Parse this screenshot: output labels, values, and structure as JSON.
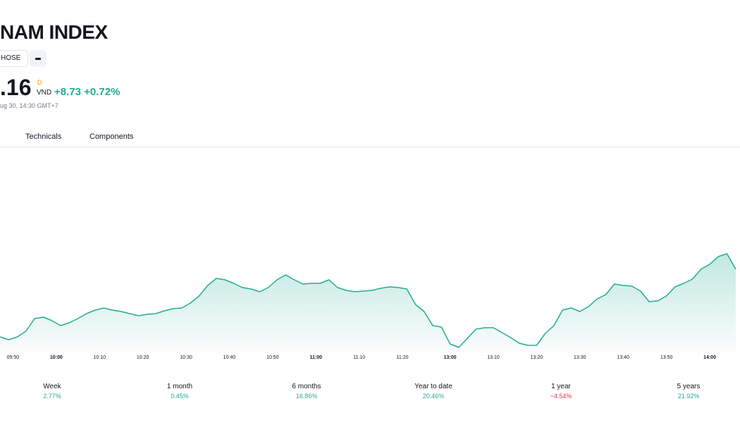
{
  "header": {
    "title": "NAM INDEX",
    "exchange": "HOSE",
    "price": ".16",
    "price_flag": "D",
    "currency": "VND",
    "change": "+8.73",
    "change_percent": "+0.72%",
    "timestamp": "ug 30, 14:30 GMT+7"
  },
  "tabs": [
    "Technicals",
    "Components"
  ],
  "chart_data": {
    "type": "area",
    "color": "#22ab94",
    "x": [
      "09:47",
      "09:49",
      "09:51",
      "09:53",
      "09:55",
      "09:57",
      "09:59",
      "10:01",
      "10:03",
      "10:05",
      "10:07",
      "10:09",
      "10:11",
      "10:13",
      "10:15",
      "10:17",
      "10:19",
      "10:21",
      "10:23",
      "10:25",
      "10:27",
      "10:29",
      "10:31",
      "10:33",
      "10:35",
      "10:37",
      "10:39",
      "10:41",
      "10:43",
      "10:45",
      "10:47",
      "10:49",
      "10:51",
      "10:53",
      "10:55",
      "10:57",
      "10:59",
      "11:01",
      "11:03",
      "11:05",
      "11:07",
      "11:09",
      "11:11",
      "11:13",
      "11:15",
      "11:17",
      "11:19",
      "11:21",
      "11:23",
      "11:25",
      "11:27",
      "11:29",
      "13:00",
      "13:02",
      "13:04",
      "13:06",
      "13:08",
      "13:10",
      "13:12",
      "13:14",
      "13:16",
      "13:18",
      "13:20",
      "13:22",
      "13:24",
      "13:26",
      "13:28",
      "13:30",
      "13:32",
      "13:34",
      "13:36",
      "13:38",
      "13:40",
      "13:42",
      "13:44",
      "13:46",
      "13:48",
      "13:50",
      "13:52",
      "13:54",
      "13:56",
      "13:58",
      "14:00",
      "14:02",
      "14:04",
      "14:06"
    ],
    "values": [
      1264.2,
      1263.8,
      1264.2,
      1265.0,
      1266.8,
      1267.0,
      1266.5,
      1265.8,
      1266.2,
      1266.8,
      1267.5,
      1268.0,
      1268.3,
      1268.0,
      1267.8,
      1267.5,
      1267.2,
      1267.4,
      1267.5,
      1267.9,
      1268.2,
      1268.3,
      1269.0,
      1270.0,
      1271.5,
      1272.5,
      1272.3,
      1271.8,
      1271.2,
      1271.0,
      1270.6,
      1271.2,
      1272.3,
      1273.0,
      1272.3,
      1271.7,
      1271.8,
      1271.8,
      1272.3,
      1271.2,
      1270.8,
      1270.6,
      1270.7,
      1270.8,
      1271.1,
      1271.3,
      1271.2,
      1271.0,
      1268.8,
      1267.8,
      1265.8,
      1265.6,
      1263.2,
      1262.7,
      1264.0,
      1265.3,
      1265.5,
      1265.5,
      1264.8,
      1264.1,
      1263.3,
      1263.0,
      1263.0,
      1264.7,
      1265.8,
      1268.0,
      1268.3,
      1267.8,
      1268.5,
      1269.6,
      1270.2,
      1271.7,
      1271.5,
      1271.4,
      1270.7,
      1269.2,
      1269.3,
      1270.0,
      1271.3,
      1271.8,
      1272.4,
      1273.8,
      1274.5,
      1275.6,
      1276.0,
      1273.8
    ],
    "xlim": [
      "09:47",
      "14:07"
    ],
    "ylim": [
      1262,
      1291
    ],
    "xticks": [
      "09:50",
      "10:00",
      "10:10",
      "10:20",
      "10:30",
      "10:40",
      "10:50",
      "11:00",
      "11:10",
      "11:20",
      "13:00",
      "13:10",
      "13:20",
      "13:30",
      "13:40",
      "13:50",
      "14:00"
    ]
  },
  "performance": [
    {
      "label": "Week",
      "value": "2.77%",
      "color": "#22ab94"
    },
    {
      "label": "1 month",
      "value": "0.45%",
      "color": "#22ab94"
    },
    {
      "label": "6 months",
      "value": "16.86%",
      "color": "#22ab94"
    },
    {
      "label": "Year to date",
      "value": "20.46%",
      "color": "#22ab94"
    },
    {
      "label": "1 year",
      "value": "−4.54%",
      "color": "#f23645"
    },
    {
      "label": "5 years",
      "value": "21.92%",
      "color": "#22ab94"
    }
  ]
}
